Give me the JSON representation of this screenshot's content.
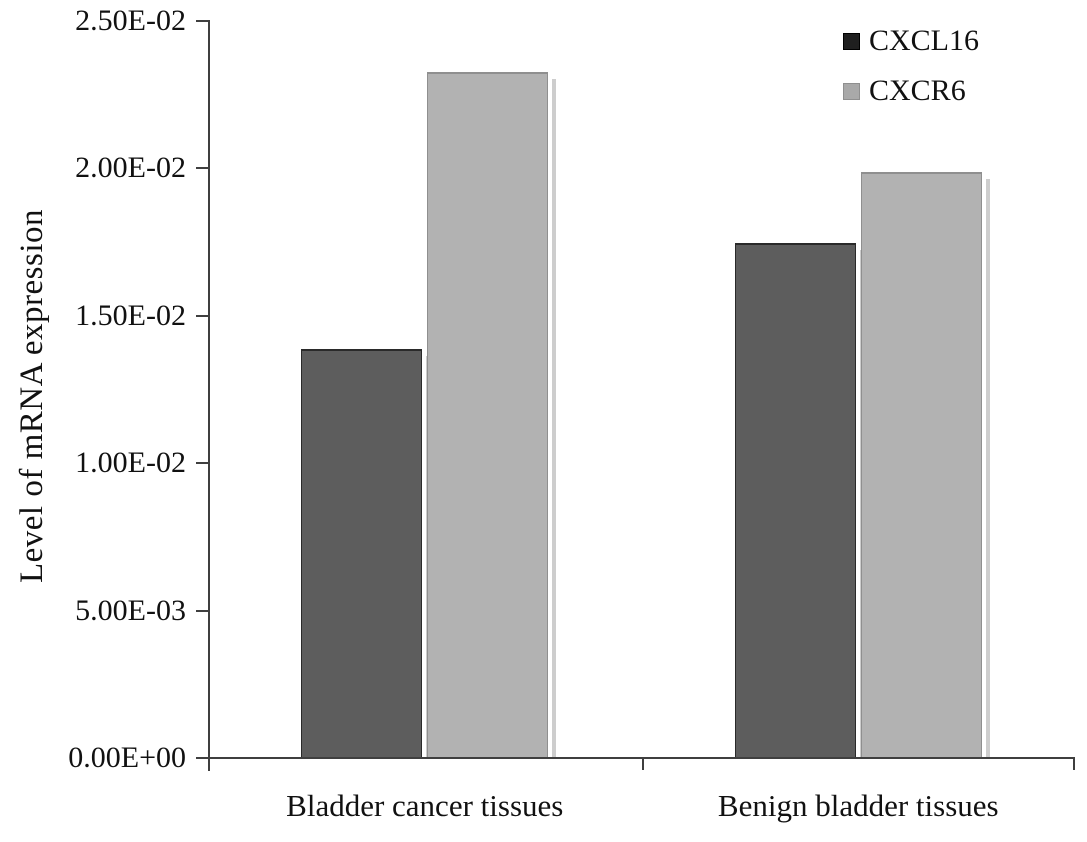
{
  "chart_data": {
    "type": "bar",
    "title": "",
    "ylabel": "Level of mRNA expression",
    "xlabel": "",
    "categories": [
      "Bladder cancer tissues",
      "Benign bladder tissues"
    ],
    "series": [
      {
        "name": "CXCL16",
        "values": [
          0.0139,
          0.0175
        ],
        "bar_color": "#5d5d5d",
        "border_color": "#2a2a2a",
        "legend_color": "#1f1f1f",
        "legend_border": "#000000"
      },
      {
        "name": "CXCR6",
        "values": [
          0.0233,
          0.0199
        ],
        "bar_color": "#b2b2b2",
        "border_color": "#8f8f8f",
        "legend_color": "#a9a9a9",
        "legend_border": "#8f8f8f"
      }
    ],
    "ylim": [
      0,
      0.025
    ],
    "yticks": [
      {
        "value": 0.0,
        "label": "0.00E+00"
      },
      {
        "value": 0.005,
        "label": "5.00E-03"
      },
      {
        "value": 0.01,
        "label": "1.00E-02"
      },
      {
        "value": 0.015,
        "label": "1.50E-02"
      },
      {
        "value": 0.02,
        "label": "2.00E-02"
      },
      {
        "value": 0.025,
        "label": "2.50E-02"
      }
    ],
    "legend_position": "top-right",
    "grid": false,
    "axis_color": "#3f3f3f",
    "background": "#ffffff",
    "text_color": "#111111"
  }
}
